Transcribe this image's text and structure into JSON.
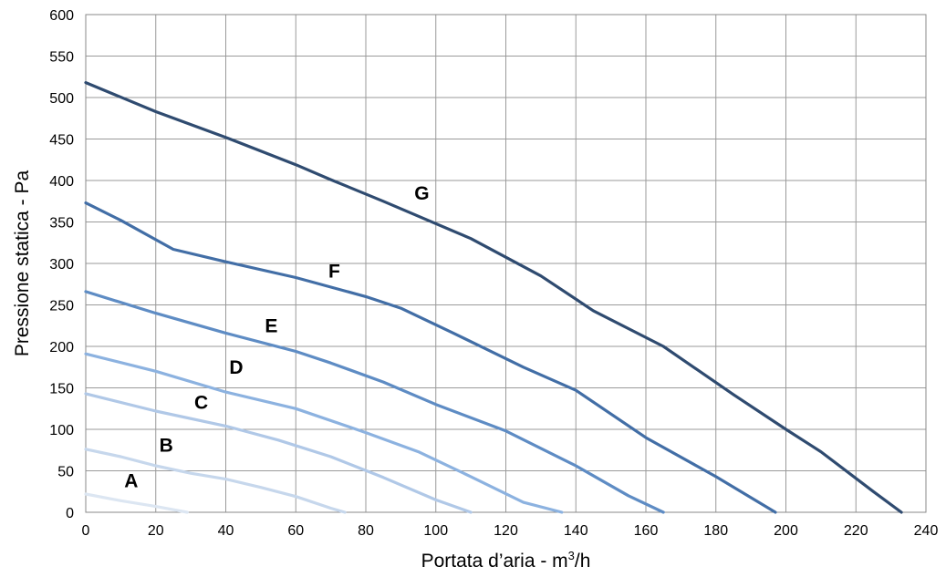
{
  "chart_data": {
    "type": "line",
    "title": "",
    "xlabel": "Portata d’aria - m",
    "xlabel_sup": "3",
    "xlabel_suffix": "/h",
    "ylabel": "Pressione statica - Pa",
    "xlim": [
      0,
      240
    ],
    "ylim": [
      0,
      600
    ],
    "x_ticks": [
      0,
      20,
      40,
      60,
      80,
      100,
      120,
      140,
      160,
      180,
      200,
      220,
      240
    ],
    "y_ticks": [
      0,
      50,
      100,
      150,
      200,
      250,
      300,
      350,
      400,
      450,
      500,
      550,
      600
    ],
    "grid": true,
    "legend": "none",
    "series": [
      {
        "name": "A",
        "color": "#dce6f2",
        "label_at": [
          13,
          30
        ],
        "points": [
          [
            0,
            22
          ],
          [
            10,
            14
          ],
          [
            20,
            7
          ],
          [
            29,
            0
          ]
        ]
      },
      {
        "name": "B",
        "color": "#c6d7ec",
        "label_at": [
          23,
          73
        ],
        "points": [
          [
            0,
            76
          ],
          [
            10,
            67
          ],
          [
            20,
            56
          ],
          [
            30,
            47
          ],
          [
            40,
            40
          ],
          [
            50,
            30
          ],
          [
            60,
            19
          ],
          [
            70,
            5
          ],
          [
            74,
            0
          ]
        ]
      },
      {
        "name": "C",
        "color": "#b0c8e7",
        "label_at": [
          33,
          125
        ],
        "points": [
          [
            0,
            143
          ],
          [
            20,
            122
          ],
          [
            40,
            104
          ],
          [
            55,
            87
          ],
          [
            70,
            67
          ],
          [
            85,
            42
          ],
          [
            100,
            15
          ],
          [
            110,
            0
          ]
        ]
      },
      {
        "name": "D",
        "color": "#8cb2e0",
        "label_at": [
          43,
          167
        ],
        "points": [
          [
            0,
            191
          ],
          [
            20,
            170
          ],
          [
            40,
            145
          ],
          [
            60,
            125
          ],
          [
            80,
            96
          ],
          [
            95,
            73
          ],
          [
            110,
            43
          ],
          [
            125,
            12
          ],
          [
            136,
            0
          ]
        ]
      },
      {
        "name": "E",
        "color": "#5e8cc4",
        "label_at": [
          53,
          217
        ],
        "points": [
          [
            0,
            266
          ],
          [
            20,
            240
          ],
          [
            40,
            216
          ],
          [
            60,
            194
          ],
          [
            70,
            180
          ],
          [
            85,
            157
          ],
          [
            100,
            130
          ],
          [
            120,
            98
          ],
          [
            140,
            56
          ],
          [
            155,
            20
          ],
          [
            165,
            0
          ]
        ]
      },
      {
        "name": "F",
        "color": "#426ea6",
        "label_at": [
          71,
          283
        ],
        "points": [
          [
            0,
            373
          ],
          [
            10,
            352
          ],
          [
            25,
            317
          ],
          [
            40,
            302
          ],
          [
            60,
            283
          ],
          [
            80,
            260
          ],
          [
            90,
            246
          ],
          [
            105,
            216
          ],
          [
            125,
            175
          ],
          [
            140,
            147
          ],
          [
            160,
            90
          ],
          [
            180,
            43
          ],
          [
            197,
            0
          ]
        ]
      },
      {
        "name": "G",
        "color": "#2f4b70",
        "label_at": [
          96,
          377
        ],
        "points": [
          [
            0,
            518
          ],
          [
            20,
            483
          ],
          [
            40,
            452
          ],
          [
            60,
            419
          ],
          [
            70,
            401
          ],
          [
            85,
            375
          ],
          [
            110,
            330
          ],
          [
            130,
            285
          ],
          [
            145,
            243
          ],
          [
            165,
            200
          ],
          [
            185,
            142
          ],
          [
            200,
            100
          ],
          [
            210,
            73
          ],
          [
            225,
            25
          ],
          [
            233,
            0
          ]
        ]
      }
    ]
  }
}
